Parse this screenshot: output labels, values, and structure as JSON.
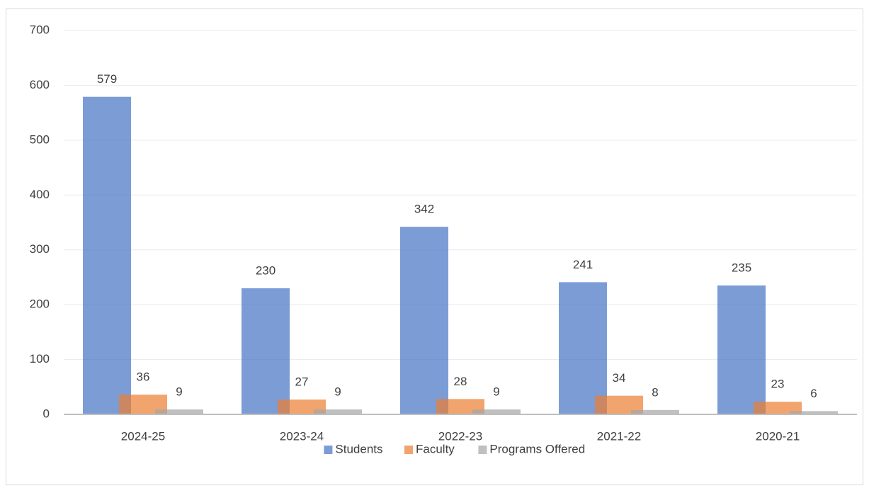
{
  "chart_data": {
    "type": "bar",
    "categories": [
      "2024-25",
      "2023-24",
      "2022-23",
      "2021-22",
      "2020-21"
    ],
    "series": [
      {
        "name": "Students",
        "color": "#4472c4",
        "values": [
          579,
          230,
          342,
          241,
          235
        ]
      },
      {
        "name": "Faculty",
        "color": "#ed7d31",
        "values": [
          36,
          27,
          28,
          34,
          23
        ]
      },
      {
        "name": "Programs Offered",
        "color": "#a5a5a5",
        "values": [
          9,
          9,
          9,
          8,
          6
        ]
      }
    ],
    "ylim": [
      0,
      700
    ],
    "yticks": [
      0,
      100,
      200,
      300,
      400,
      500,
      600,
      700
    ],
    "grid": true,
    "legend": "bottom"
  }
}
